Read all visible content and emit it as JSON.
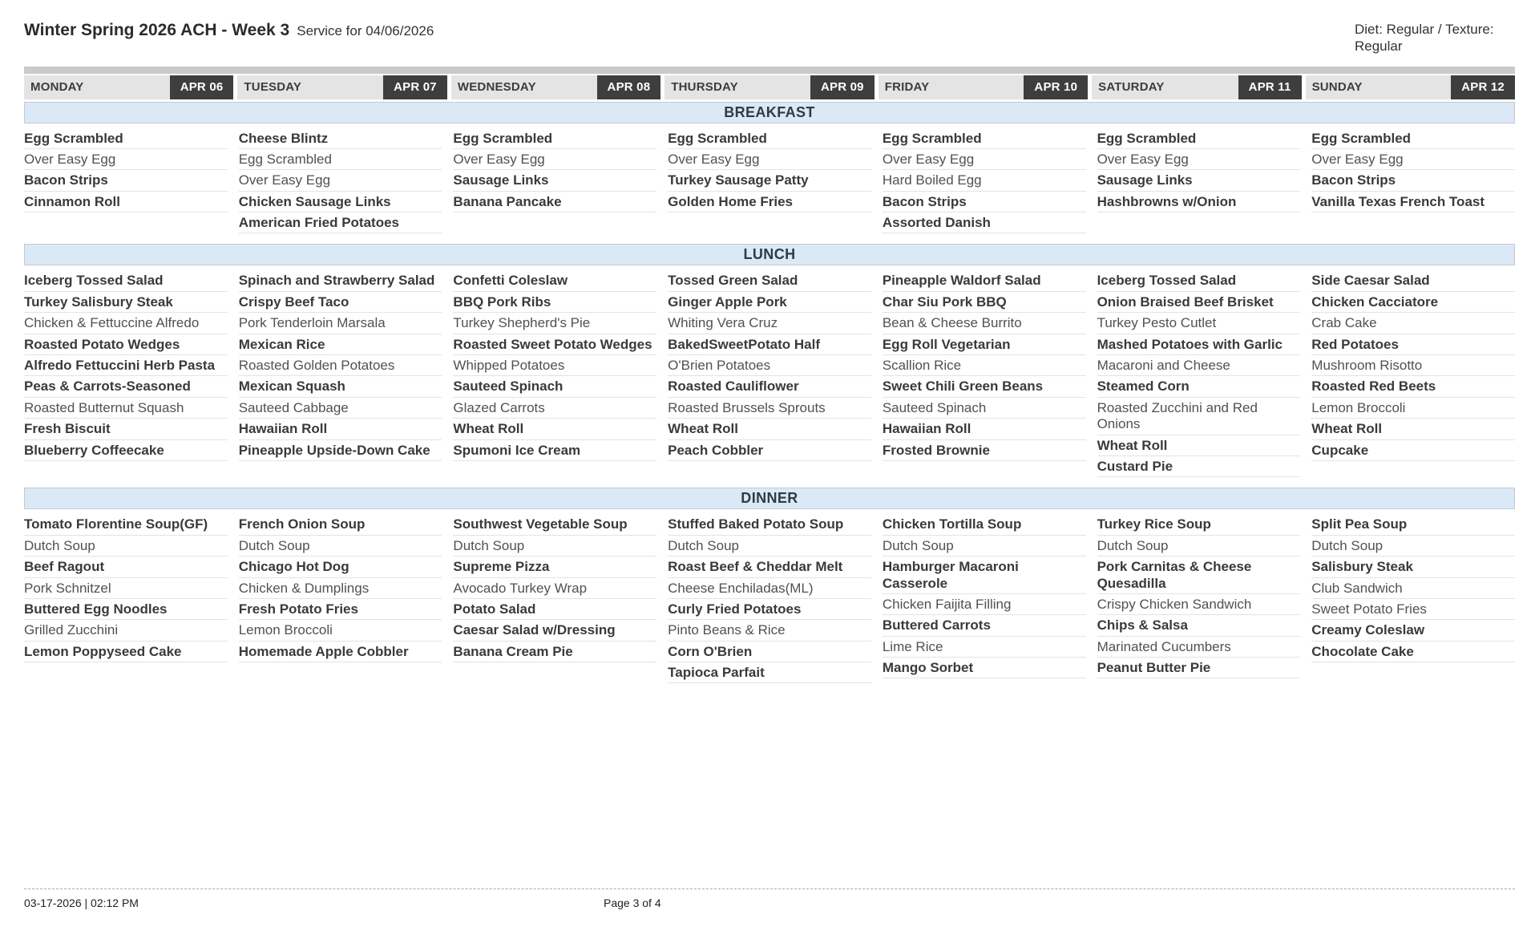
{
  "header": {
    "title": "Winter Spring 2026 ACH - Week 3",
    "subtitle": "Service for 04/06/2026",
    "diet_info": "Diet: Regular / Texture: Regular"
  },
  "days": [
    {
      "name": "MONDAY",
      "date": "APR 06"
    },
    {
      "name": "TUESDAY",
      "date": "APR 07"
    },
    {
      "name": "WEDNESDAY",
      "date": "APR 08"
    },
    {
      "name": "THURSDAY",
      "date": "APR 09"
    },
    {
      "name": "FRIDAY",
      "date": "APR 10"
    },
    {
      "name": "SATURDAY",
      "date": "APR 11"
    },
    {
      "name": "SUNDAY",
      "date": "APR 12"
    }
  ],
  "meals": [
    {
      "label": "BREAKFAST",
      "columns": [
        {
          "items": [
            {
              "t": "Egg Scrambled",
              "b": true
            },
            {
              "t": "Over Easy Egg",
              "b": false
            },
            {
              "t": "Bacon Strips",
              "b": true
            },
            {
              "t": "Cinnamon Roll",
              "b": true
            }
          ]
        },
        {
          "items": [
            {
              "t": "Cheese Blintz",
              "b": true
            },
            {
              "t": "Egg Scrambled",
              "b": false
            },
            {
              "t": "Over Easy Egg",
              "b": false
            },
            {
              "t": "Chicken Sausage Links",
              "b": true
            },
            {
              "t": "American Fried Potatoes",
              "b": true
            }
          ]
        },
        {
          "items": [
            {
              "t": "Egg Scrambled",
              "b": true
            },
            {
              "t": "Over Easy Egg",
              "b": false
            },
            {
              "t": "Sausage Links",
              "b": true
            },
            {
              "t": "Banana Pancake",
              "b": true
            }
          ]
        },
        {
          "items": [
            {
              "t": "Egg Scrambled",
              "b": true
            },
            {
              "t": "Over Easy Egg",
              "b": false
            },
            {
              "t": "Turkey Sausage Patty",
              "b": true
            },
            {
              "t": "Golden Home Fries",
              "b": true
            }
          ]
        },
        {
          "items": [
            {
              "t": "Egg Scrambled",
              "b": true
            },
            {
              "t": "Over Easy Egg",
              "b": false
            },
            {
              "t": "Hard Boiled Egg",
              "b": false
            },
            {
              "t": "Bacon Strips",
              "b": true
            },
            {
              "t": "Assorted Danish",
              "b": true
            }
          ]
        },
        {
          "items": [
            {
              "t": "Egg Scrambled",
              "b": true
            },
            {
              "t": "Over Easy Egg",
              "b": false
            },
            {
              "t": "Sausage Links",
              "b": true
            },
            {
              "t": "Hashbrowns w/Onion",
              "b": true
            }
          ]
        },
        {
          "items": [
            {
              "t": "Egg Scrambled",
              "b": true
            },
            {
              "t": "Over Easy Egg",
              "b": false
            },
            {
              "t": "Bacon Strips",
              "b": true
            },
            {
              "t": "Vanilla Texas French Toast",
              "b": true
            }
          ]
        }
      ]
    },
    {
      "label": "LUNCH",
      "columns": [
        {
          "items": [
            {
              "t": "Iceberg Tossed Salad",
              "b": true
            },
            {
              "t": "Turkey Salisbury Steak",
              "b": true
            },
            {
              "t": "Chicken & Fettuccine Alfredo",
              "b": false
            },
            {
              "t": "Roasted Potato Wedges",
              "b": true
            },
            {
              "t": "Alfredo Fettuccini Herb Pasta",
              "b": true
            },
            {
              "t": "Peas & Carrots-Seasoned",
              "b": true
            },
            {
              "t": "Roasted Butternut Squash",
              "b": false
            },
            {
              "t": "Fresh Biscuit",
              "b": true
            },
            {
              "t": "Blueberry Coffeecake",
              "b": true
            }
          ]
        },
        {
          "items": [
            {
              "t": "Spinach and Strawberry Salad",
              "b": true
            },
            {
              "t": "Crispy Beef Taco",
              "b": true
            },
            {
              "t": "Pork Tenderloin Marsala",
              "b": false
            },
            {
              "t": "Mexican Rice",
              "b": true
            },
            {
              "t": "Roasted Golden Potatoes",
              "b": false
            },
            {
              "t": "Mexican Squash",
              "b": true
            },
            {
              "t": "Sauteed Cabbage",
              "b": false
            },
            {
              "t": "Hawaiian Roll",
              "b": true
            },
            {
              "t": "Pineapple Upside-Down Cake",
              "b": true
            }
          ]
        },
        {
          "items": [
            {
              "t": "Confetti Coleslaw",
              "b": true
            },
            {
              "t": "BBQ Pork Ribs",
              "b": true
            },
            {
              "t": "Turkey Shepherd's Pie",
              "b": false
            },
            {
              "t": "Roasted Sweet Potato Wedges",
              "b": true
            },
            {
              "t": "Whipped Potatoes",
              "b": false
            },
            {
              "t": "Sauteed Spinach",
              "b": true
            },
            {
              "t": "Glazed Carrots",
              "b": false
            },
            {
              "t": "Wheat Roll",
              "b": true
            },
            {
              "t": "Spumoni Ice Cream",
              "b": true
            }
          ]
        },
        {
          "items": [
            {
              "t": "Tossed Green Salad",
              "b": true
            },
            {
              "t": "Ginger Apple Pork",
              "b": true
            },
            {
              "t": "Whiting Vera Cruz",
              "b": false
            },
            {
              "t": "BakedSweetPotato Half",
              "b": true
            },
            {
              "t": "O'Brien Potatoes",
              "b": false
            },
            {
              "t": "Roasted Cauliflower",
              "b": true
            },
            {
              "t": "Roasted Brussels Sprouts",
              "b": false
            },
            {
              "t": "Wheat Roll",
              "b": true
            },
            {
              "t": "Peach Cobbler",
              "b": true
            }
          ]
        },
        {
          "items": [
            {
              "t": "Pineapple Waldorf Salad",
              "b": true
            },
            {
              "t": "Char Siu Pork BBQ",
              "b": true
            },
            {
              "t": "Bean & Cheese Burrito",
              "b": false
            },
            {
              "t": "Egg Roll Vegetarian",
              "b": true
            },
            {
              "t": "Scallion Rice",
              "b": false
            },
            {
              "t": "Sweet Chili Green Beans",
              "b": true
            },
            {
              "t": "Sauteed Spinach",
              "b": false
            },
            {
              "t": "Hawaiian Roll",
              "b": true
            },
            {
              "t": "Frosted Brownie",
              "b": true
            }
          ]
        },
        {
          "items": [
            {
              "t": "Iceberg Tossed Salad",
              "b": true
            },
            {
              "t": "Onion Braised Beef Brisket",
              "b": true
            },
            {
              "t": "Turkey Pesto Cutlet",
              "b": false
            },
            {
              "t": "Mashed Potatoes with Garlic",
              "b": true
            },
            {
              "t": "Macaroni and Cheese",
              "b": false
            },
            {
              "t": "Steamed Corn",
              "b": true
            },
            {
              "t": "Roasted Zucchini and Red Onions",
              "b": false
            },
            {
              "t": "Wheat Roll",
              "b": true
            },
            {
              "t": "Custard Pie",
              "b": true
            }
          ]
        },
        {
          "items": [
            {
              "t": "Side Caesar Salad",
              "b": true
            },
            {
              "t": "Chicken Cacciatore",
              "b": true
            },
            {
              "t": "Crab Cake",
              "b": false
            },
            {
              "t": "Red Potatoes",
              "b": true
            },
            {
              "t": "Mushroom Risotto",
              "b": false
            },
            {
              "t": "Roasted Red Beets",
              "b": true
            },
            {
              "t": "Lemon Broccoli",
              "b": false
            },
            {
              "t": "Wheat Roll",
              "b": true
            },
            {
              "t": "Cupcake",
              "b": true
            }
          ]
        }
      ]
    },
    {
      "label": "DINNER",
      "columns": [
        {
          "items": [
            {
              "t": "Tomato Florentine Soup(GF)",
              "b": true
            },
            {
              "t": "Dutch Soup",
              "b": false
            },
            {
              "t": "Beef Ragout",
              "b": true
            },
            {
              "t": "Pork Schnitzel",
              "b": false
            },
            {
              "t": "Buttered Egg Noodles",
              "b": true
            },
            {
              "t": "Grilled Zucchini",
              "b": false
            },
            {
              "t": "Lemon Poppyseed Cake",
              "b": true
            }
          ]
        },
        {
          "items": [
            {
              "t": "French Onion Soup",
              "b": true
            },
            {
              "t": "Dutch Soup",
              "b": false
            },
            {
              "t": "Chicago Hot Dog",
              "b": true
            },
            {
              "t": "Chicken & Dumplings",
              "b": false
            },
            {
              "t": "Fresh Potato Fries",
              "b": true
            },
            {
              "t": "Lemon Broccoli",
              "b": false
            },
            {
              "t": "Homemade Apple Cobbler",
              "b": true
            }
          ]
        },
        {
          "items": [
            {
              "t": "Southwest Vegetable Soup",
              "b": true
            },
            {
              "t": "Dutch Soup",
              "b": false
            },
            {
              "t": "Supreme Pizza",
              "b": true
            },
            {
              "t": "Avocado Turkey Wrap",
              "b": false
            },
            {
              "t": "Potato Salad",
              "b": true
            },
            {
              "t": "Caesar Salad w/Dressing",
              "b": true
            },
            {
              "t": "Banana Cream Pie",
              "b": true
            }
          ]
        },
        {
          "items": [
            {
              "t": "Stuffed Baked Potato Soup",
              "b": true
            },
            {
              "t": "Dutch Soup",
              "b": false
            },
            {
              "t": "Roast Beef & Cheddar Melt",
              "b": true
            },
            {
              "t": "Cheese Enchiladas(ML)",
              "b": false
            },
            {
              "t": "Curly Fried Potatoes",
              "b": true
            },
            {
              "t": "Pinto Beans & Rice",
              "b": false
            },
            {
              "t": "Corn O'Brien",
              "b": true
            },
            {
              "t": "Tapioca Parfait",
              "b": true
            }
          ]
        },
        {
          "items": [
            {
              "t": "Chicken Tortilla Soup",
              "b": true
            },
            {
              "t": "Dutch Soup",
              "b": false
            },
            {
              "t": "Hamburger Macaroni Casserole",
              "b": true
            },
            {
              "t": "Chicken Faijita Filling",
              "b": false
            },
            {
              "t": "Buttered Carrots",
              "b": true
            },
            {
              "t": "Lime Rice",
              "b": false
            },
            {
              "t": "Mango Sorbet",
              "b": true
            }
          ]
        },
        {
          "items": [
            {
              "t": "Turkey Rice Soup",
              "b": true
            },
            {
              "t": "Dutch Soup",
              "b": false
            },
            {
              "t": "Pork Carnitas & Cheese Quesadilla",
              "b": true
            },
            {
              "t": "Crispy Chicken Sandwich",
              "b": false
            },
            {
              "t": "Chips & Salsa",
              "b": true
            },
            {
              "t": "Marinated Cucumbers",
              "b": false
            },
            {
              "t": "Peanut Butter Pie",
              "b": true
            }
          ]
        },
        {
          "items": [
            {
              "t": "Split Pea Soup",
              "b": true
            },
            {
              "t": "Dutch Soup",
              "b": false
            },
            {
              "t": "Salisbury Steak",
              "b": true
            },
            {
              "t": "Club Sandwich",
              "b": false
            },
            {
              "t": "Sweet Potato Fries",
              "b": false
            },
            {
              "t": "Creamy Coleslaw",
              "b": true
            },
            {
              "t": "Chocolate Cake",
              "b": true
            }
          ]
        }
      ]
    }
  ],
  "footer": {
    "timestamp": "03-17-2026 | 02:12 PM",
    "page": "Page 3 of 4"
  },
  "colors": {
    "band_bg": "#dbe9f6",
    "badge_bg": "#3e3e3e",
    "day_header_bg": "#e4e4e4",
    "top_bar_bg": "#cacaca"
  }
}
